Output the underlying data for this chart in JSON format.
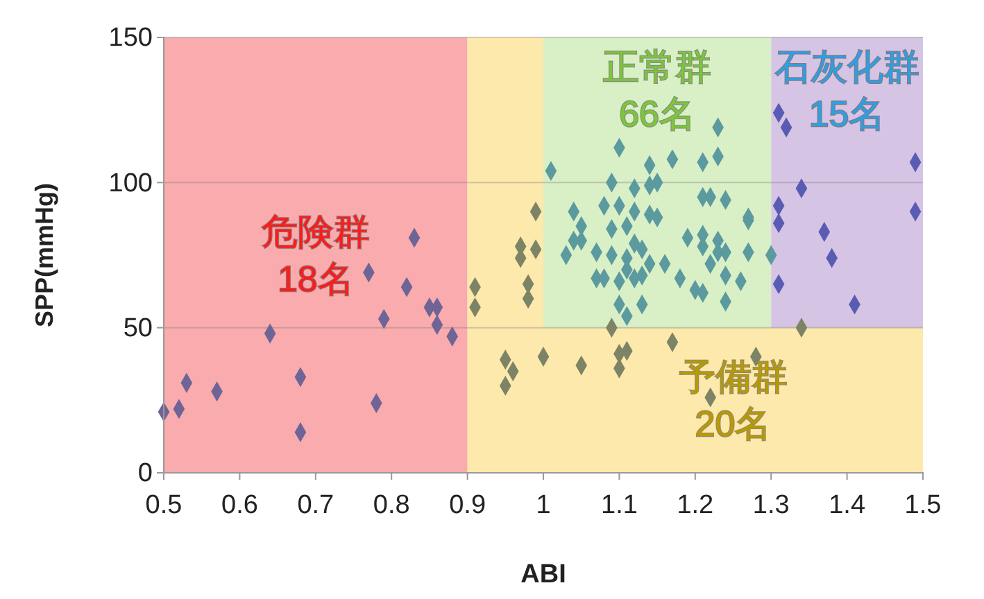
{
  "chart_data": {
    "type": "scatter",
    "xlabel": "ABI",
    "ylabel": "SPP(mmHg)",
    "xlim": [
      0.5,
      1.5
    ],
    "xticks": [
      0.5,
      0.6,
      0.7,
      0.8,
      0.9,
      1,
      1.1,
      1.2,
      1.3,
      1.4,
      1.5
    ],
    "ylim": [
      0,
      150
    ],
    "yticks": [
      0,
      50,
      100,
      150
    ],
    "grid": "y",
    "marker": "diamond",
    "bands": [
      {
        "axis": "x",
        "from": 1.0,
        "to": 1.3,
        "color": "#d9efc6",
        "label": "正常群\n66名"
      },
      {
        "axis": "x",
        "from": 1.3,
        "to": 1.5,
        "color": "#d5c4e4",
        "label": "石灰化群\n15名"
      },
      {
        "axis": "y",
        "from": 0,
        "to": 50,
        "color": "#fde9ab",
        "label": "予備群\n20名"
      },
      {
        "axis": "x",
        "from": 0.5,
        "to": 0.9,
        "color": "#f9abad",
        "label": "危険群\n18名"
      },
      {
        "axis": "x",
        "from": 0.9,
        "to": 1.0,
        "color": "#fde9ab"
      }
    ],
    "series": [
      {
        "color": "#6e6496",
        "x": [
          0.5,
          0.52,
          0.53,
          0.57,
          0.64,
          0.68,
          0.68,
          0.78,
          0.77,
          0.79,
          0.82,
          0.83,
          0.85,
          0.86,
          0.86,
          0.88
        ],
        "values": [
          21,
          22,
          31,
          28,
          48,
          33,
          14,
          24,
          69,
          53,
          64,
          81,
          57,
          57,
          51,
          47
        ]
      },
      {
        "color": "#7d8466",
        "x": [
          0.91,
          0.91,
          0.97,
          0.97,
          0.99,
          0.99,
          0.98,
          0.98,
          0.95,
          0.96,
          0.95,
          1.0,
          1.05,
          1.1,
          1.11,
          1.1,
          1.17,
          1.22,
          1.28,
          1.09,
          1.34
        ],
        "values": [
          64,
          57,
          78,
          74,
          77,
          90,
          65,
          60,
          39,
          35,
          30,
          40,
          37,
          41,
          42,
          36,
          45,
          26,
          40,
          50,
          50
        ]
      },
      {
        "color": "#5b9a9e",
        "x": [
          1.01,
          1.1,
          1.14,
          1.17,
          1.21,
          1.23,
          1.23,
          1.09,
          1.12,
          1.14,
          1.15,
          1.04,
          1.08,
          1.1,
          1.12,
          1.14,
          1.15,
          1.21,
          1.22,
          1.24,
          1.27,
          1.05,
          1.09,
          1.11,
          1.04,
          1.05,
          1.12,
          1.13,
          1.19,
          1.21,
          1.23,
          1.21,
          1.23,
          1.24,
          1.27,
          1.3,
          1.03,
          1.07,
          1.09,
          1.11,
          1.14,
          1.16,
          1.11,
          1.22,
          1.07,
          1.08,
          1.1,
          1.12,
          1.13,
          1.18,
          1.2,
          1.21,
          1.24,
          1.26,
          1.24,
          1.1,
          1.13,
          1.11,
          1.27
        ],
        "values": [
          104,
          112,
          106,
          108,
          107,
          119,
          109,
          100,
          98,
          99,
          100,
          90,
          92,
          92,
          90,
          89,
          88,
          95,
          95,
          94,
          87,
          85,
          84,
          85,
          80,
          80,
          79,
          77,
          81,
          82,
          80,
          78,
          76,
          76,
          76,
          75,
          75,
          76,
          75,
          74,
          72,
          72,
          70,
          72,
          67,
          67,
          66,
          67,
          68,
          67,
          63,
          62,
          68,
          66,
          59,
          58,
          58,
          54,
          88
        ]
      },
      {
        "color": "#5a5cb4",
        "x": [
          1.31,
          1.32,
          1.49,
          1.34,
          1.31,
          1.31,
          1.37,
          1.38,
          1.31,
          1.41,
          1.49
        ],
        "values": [
          124,
          119,
          107,
          98,
          92,
          86,
          83,
          74,
          65,
          58,
          90
        ]
      }
    ]
  }
}
